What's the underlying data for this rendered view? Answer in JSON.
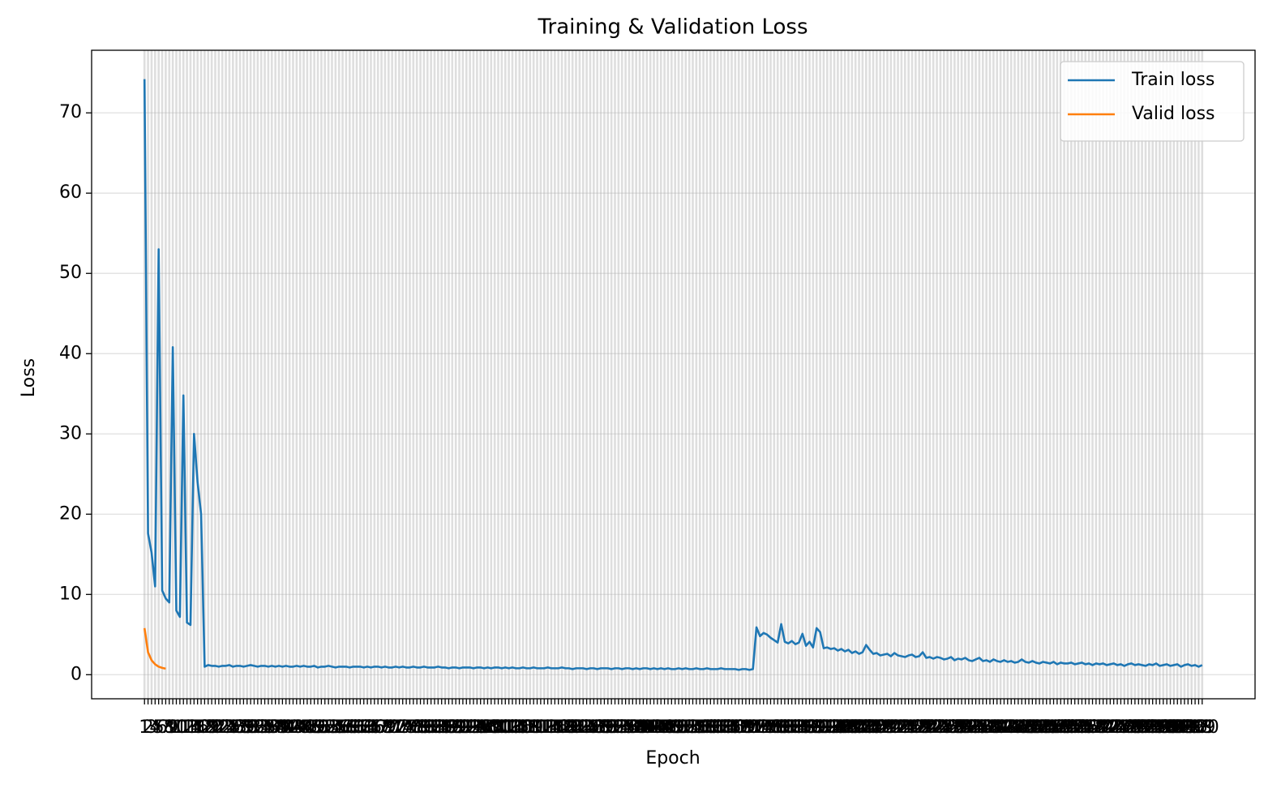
{
  "chart_data": {
    "type": "line",
    "title": "Training & Validation Loss",
    "x_label": "Epoch",
    "y_label": "Loss",
    "categories": [
      1,
      2,
      3,
      4,
      5,
      6,
      7,
      8,
      9,
      10,
      11,
      12,
      13,
      14,
      15,
      16,
      17,
      18,
      19,
      20,
      21,
      22,
      23,
      24,
      25,
      26,
      27,
      28,
      29,
      30,
      31,
      32,
      33,
      34,
      35,
      36,
      37,
      38,
      39,
      40,
      41,
      42,
      43,
      44,
      45,
      46,
      47,
      48,
      49,
      50,
      51,
      52,
      53,
      54,
      55,
      56,
      57,
      58,
      59,
      60,
      61,
      62,
      63,
      64,
      65,
      66,
      67,
      68,
      69,
      70,
      71,
      72,
      73,
      74,
      75,
      76,
      77,
      78,
      79,
      80,
      81,
      82,
      83,
      84,
      85,
      86,
      87,
      88,
      89,
      90,
      91,
      92,
      93,
      94,
      95,
      96,
      97,
      98,
      99,
      100,
      101,
      102,
      103,
      104,
      105,
      106,
      107,
      108,
      109,
      110,
      111,
      112,
      113,
      114,
      115,
      116,
      117,
      118,
      119,
      120,
      121,
      122,
      123,
      124,
      125,
      126,
      127,
      128,
      129,
      130,
      131,
      132,
      133,
      134,
      135,
      136,
      137,
      138,
      139,
      140,
      141,
      142,
      143,
      144,
      145,
      146,
      147,
      148,
      149,
      150,
      151,
      152,
      153,
      154,
      155,
      156,
      157,
      158,
      159,
      160,
      161,
      162,
      163,
      164,
      165,
      166,
      167,
      168,
      169,
      170,
      171,
      172,
      173,
      174,
      175,
      176,
      177,
      178,
      179,
      180,
      181,
      182,
      183,
      184,
      185,
      186,
      187,
      188,
      189,
      190,
      191,
      192,
      193,
      194,
      195,
      196,
      197,
      198,
      199,
      200,
      201,
      202,
      203,
      204,
      205,
      206,
      207,
      208,
      209,
      210,
      211,
      212,
      213,
      214,
      215,
      216,
      217,
      218,
      219,
      220,
      221,
      222,
      223,
      224,
      225,
      226,
      227,
      228,
      229,
      230,
      231,
      232,
      233,
      234,
      235,
      236,
      237,
      238,
      239,
      240,
      241,
      242,
      243,
      244,
      245,
      246,
      247,
      248,
      249,
      250,
      251,
      252,
      253,
      254,
      255,
      256,
      257,
      258,
      259,
      260,
      261,
      262,
      263,
      264,
      265,
      266,
      267,
      268,
      269,
      270,
      271,
      272,
      273,
      274,
      275,
      276,
      277,
      278,
      279,
      280,
      281,
      282,
      283,
      284,
      285,
      286,
      287,
      288,
      289,
      290,
      291,
      292,
      293,
      294,
      295,
      296,
      297,
      298,
      299,
      300
    ],
    "series": [
      {
        "name": "Train loss",
        "color": "#1f77b4",
        "values": [
          74.2,
          17.6,
          15.2,
          11.0,
          53.0,
          10.5,
          9.5,
          9.0,
          40.8,
          8.0,
          7.2,
          34.8,
          6.5,
          6.2,
          30.0,
          24.0,
          20.0,
          1.0,
          1.2,
          1.1,
          1.1,
          1.0,
          1.1,
          1.1,
          1.2,
          1.0,
          1.1,
          1.1,
          1.0,
          1.1,
          1.2,
          1.1,
          1.0,
          1.1,
          1.1,
          1.0,
          1.1,
          1.0,
          1.1,
          1.0,
          1.1,
          1.0,
          1.0,
          1.1,
          1.0,
          1.1,
          1.0,
          1.0,
          1.1,
          0.9,
          1.0,
          1.0,
          1.1,
          1.0,
          0.9,
          1.0,
          1.0,
          1.0,
          0.9,
          1.0,
          1.0,
          1.0,
          0.9,
          1.0,
          0.9,
          1.0,
          1.0,
          0.9,
          1.0,
          0.9,
          0.9,
          1.0,
          0.9,
          1.0,
          0.9,
          0.9,
          1.0,
          0.9,
          0.9,
          1.0,
          0.9,
          0.9,
          0.9,
          1.0,
          0.9,
          0.9,
          0.8,
          0.9,
          0.9,
          0.8,
          0.9,
          0.9,
          0.9,
          0.8,
          0.9,
          0.9,
          0.8,
          0.9,
          0.8,
          0.9,
          0.9,
          0.8,
          0.9,
          0.8,
          0.9,
          0.8,
          0.8,
          0.9,
          0.8,
          0.8,
          0.9,
          0.8,
          0.8,
          0.8,
          0.9,
          0.8,
          0.8,
          0.8,
          0.9,
          0.8,
          0.8,
          0.7,
          0.8,
          0.8,
          0.8,
          0.7,
          0.8,
          0.8,
          0.7,
          0.8,
          0.8,
          0.8,
          0.7,
          0.8,
          0.8,
          0.7,
          0.8,
          0.8,
          0.7,
          0.8,
          0.7,
          0.8,
          0.8,
          0.7,
          0.8,
          0.7,
          0.8,
          0.7,
          0.8,
          0.7,
          0.7,
          0.8,
          0.7,
          0.8,
          0.7,
          0.7,
          0.8,
          0.7,
          0.7,
          0.8,
          0.7,
          0.7,
          0.7,
          0.8,
          0.7,
          0.7,
          0.7,
          0.7,
          0.6,
          0.7,
          0.7,
          0.6,
          0.7,
          5.9,
          4.8,
          5.2,
          5.0,
          4.6,
          4.3,
          4.0,
          6.3,
          4.1,
          3.9,
          4.2,
          3.8,
          4.0,
          5.1,
          3.6,
          4.1,
          3.4,
          5.8,
          5.3,
          3.3,
          3.4,
          3.2,
          3.3,
          3.0,
          3.2,
          2.9,
          3.1,
          2.7,
          2.9,
          2.6,
          2.8,
          3.7,
          3.1,
          2.6,
          2.7,
          2.4,
          2.5,
          2.6,
          2.3,
          2.7,
          2.4,
          2.3,
          2.2,
          2.4,
          2.5,
          2.2,
          2.3,
          2.8,
          2.1,
          2.2,
          2.0,
          2.2,
          2.1,
          1.9,
          2.0,
          2.2,
          1.8,
          2.0,
          1.9,
          2.1,
          1.8,
          1.7,
          1.9,
          2.1,
          1.7,
          1.8,
          1.6,
          1.9,
          1.7,
          1.6,
          1.8,
          1.6,
          1.7,
          1.5,
          1.6,
          1.9,
          1.6,
          1.5,
          1.7,
          1.5,
          1.4,
          1.6,
          1.5,
          1.4,
          1.6,
          1.3,
          1.5,
          1.4,
          1.4,
          1.5,
          1.3,
          1.4,
          1.5,
          1.3,
          1.4,
          1.2,
          1.4,
          1.3,
          1.4,
          1.2,
          1.3,
          1.4,
          1.2,
          1.3,
          1.1,
          1.3,
          1.4,
          1.2,
          1.3,
          1.2,
          1.1,
          1.3,
          1.2,
          1.4,
          1.1,
          1.2,
          1.3,
          1.1,
          1.2,
          1.3,
          1.0,
          1.2,
          1.3,
          1.1,
          1.2,
          1.0,
          1.2
        ]
      },
      {
        "name": "Valid loss",
        "color": "#ff7f0e",
        "values": [
          5.8,
          2.8,
          1.8,
          1.3,
          1.0,
          0.85,
          0.75,
          null,
          null,
          null,
          null,
          null,
          null,
          null,
          null,
          null,
          null,
          null,
          null,
          null,
          null,
          null,
          null,
          null,
          null,
          null,
          null,
          null,
          null,
          null,
          null,
          null,
          null,
          null,
          null,
          null,
          null,
          null,
          null,
          null,
          null,
          null,
          null,
          null,
          null,
          null,
          null,
          null,
          null,
          null,
          null,
          null,
          null,
          null,
          null,
          null,
          null,
          null,
          null,
          null,
          null,
          null,
          null,
          null,
          null,
          null,
          null,
          null,
          null,
          null,
          null,
          null,
          null,
          null,
          null,
          null,
          null,
          null,
          null,
          null,
          null,
          null,
          null,
          null,
          null,
          null,
          null,
          null,
          null,
          null,
          null,
          null,
          null,
          null,
          null,
          null,
          null,
          null,
          null,
          null,
          null,
          null,
          null,
          null,
          null,
          null,
          null,
          null,
          null,
          null,
          null,
          null,
          null,
          null,
          null,
          null,
          null,
          null,
          null,
          null,
          null,
          null,
          null,
          null,
          null,
          null,
          null,
          null,
          null,
          null,
          null,
          null,
          null,
          null,
          null,
          null,
          null,
          null,
          null,
          null,
          null,
          null,
          null,
          null,
          null,
          null,
          null,
          null,
          null,
          null,
          null,
          null,
          null,
          null,
          null,
          null,
          null,
          null,
          null,
          null,
          null,
          null,
          null,
          null,
          null,
          null,
          null,
          null,
          null,
          null,
          null,
          null,
          null,
          null,
          null,
          null,
          null,
          null,
          null,
          null,
          null,
          null,
          null,
          null,
          null,
          null,
          null,
          null,
          null,
          null,
          null,
          null,
          null,
          null,
          null,
          null,
          null,
          null,
          null,
          null,
          null,
          null,
          null,
          null,
          null,
          null,
          null,
          null,
          null,
          null,
          null,
          null,
          null,
          null,
          null,
          null,
          null,
          null,
          null,
          null,
          null,
          null,
          null,
          null,
          null,
          null,
          null,
          null,
          null,
          null,
          null,
          null,
          null,
          null,
          null,
          null,
          null,
          null,
          null,
          null,
          null,
          null,
          null,
          null,
          null,
          null,
          null,
          null,
          null,
          null,
          null,
          null,
          null,
          null,
          null,
          null,
          null,
          null,
          null,
          null,
          null,
          null,
          null,
          null,
          null,
          null,
          null,
          null,
          null,
          null,
          null,
          null,
          null,
          null,
          null,
          null,
          null,
          null,
          null,
          null,
          null,
          null,
          null,
          null,
          null,
          null,
          null,
          null,
          null,
          null,
          null,
          null,
          null,
          null,
          null,
          null,
          null,
          null,
          null,
          null
        ]
      }
    ],
    "ylim": [
      -3,
      77.8
    ],
    "yticks": [
      0,
      10,
      20,
      30,
      40,
      50,
      60,
      70
    ],
    "grid": true,
    "legend": "upper right"
  }
}
